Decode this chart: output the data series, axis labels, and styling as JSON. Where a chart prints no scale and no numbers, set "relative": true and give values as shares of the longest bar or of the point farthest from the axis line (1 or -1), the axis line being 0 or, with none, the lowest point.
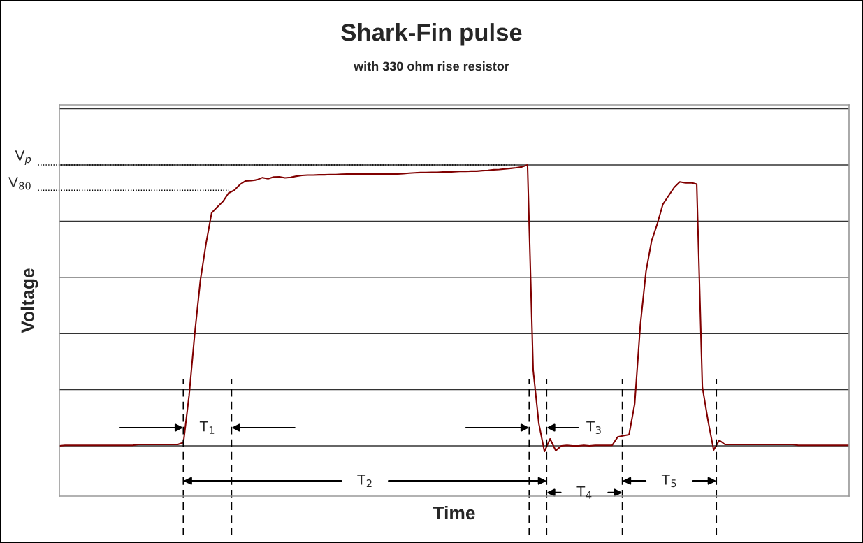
{
  "chart_data": {
    "type": "line",
    "title": "Shark-Fin pulse",
    "subtitle": "with 330 ohm rise resistor",
    "xlabel": "Time",
    "ylabel": "Voltage",
    "relative": true,
    "grid": "y",
    "tick_labels": false,
    "categories": [
      null,
      null,
      null,
      null,
      null,
      null,
      null,
      null,
      null,
      null,
      null,
      null,
      null,
      null,
      null,
      null,
      null,
      null,
      null,
      null,
      null,
      null,
      null,
      null,
      null,
      null,
      null,
      null,
      null,
      null,
      null,
      null,
      null,
      null,
      null,
      null,
      null,
      null,
      null,
      null,
      null,
      null,
      null,
      null,
      null,
      null,
      null,
      null,
      null,
      null,
      null,
      null,
      null,
      null,
      null,
      null,
      null,
      null,
      null,
      null,
      null,
      null,
      null,
      null,
      null,
      null,
      null,
      null,
      null,
      null,
      null,
      null,
      null,
      null,
      null,
      null,
      null,
      null,
      null,
      null,
      null,
      null,
      null,
      null,
      null,
      null,
      null,
      null,
      null,
      null,
      null,
      null,
      null,
      null,
      null,
      null,
      null,
      null,
      null,
      null,
      null,
      null,
      null,
      null,
      null,
      null,
      null,
      null,
      null,
      null,
      null,
      null,
      null,
      null,
      null,
      null,
      null,
      null,
      null,
      null,
      null,
      null,
      null,
      null,
      null,
      null,
      null,
      null,
      null,
      null,
      null,
      null,
      null,
      null,
      null,
      null,
      null,
      null,
      null,
      null,
      null
    ],
    "series": [
      {
        "color": "#800000",
        "values": [
          0.0,
          0.002,
          0.002,
          0.002,
          0.002,
          0.002,
          0.002,
          0.002,
          0.002,
          0.002,
          0.002,
          0.002,
          0.002,
          0.002,
          0.005,
          0.005,
          0.005,
          0.005,
          0.005,
          0.005,
          0.005,
          0.005,
          0.012,
          0.18,
          0.4,
          0.59,
          0.72,
          0.83,
          0.85,
          0.87,
          0.9,
          0.91,
          0.93,
          0.943,
          0.944,
          0.947,
          0.955,
          0.951,
          0.957,
          0.958,
          0.954,
          0.956,
          0.96,
          0.963,
          0.964,
          0.964,
          0.965,
          0.965,
          0.966,
          0.966,
          0.967,
          0.968,
          0.968,
          0.968,
          0.968,
          0.968,
          0.968,
          0.968,
          0.968,
          0.968,
          0.968,
          0.969,
          0.971,
          0.972,
          0.973,
          0.973,
          0.974,
          0.974,
          0.975,
          0.975,
          0.976,
          0.977,
          0.977,
          0.978,
          0.978,
          0.98,
          0.981,
          0.983,
          0.984,
          0.986,
          0.988,
          0.99,
          0.993,
          1.0,
          0.27,
          0.08,
          -0.02,
          0.025,
          -0.017,
          0.0,
          0.002,
          0.0,
          0.0,
          0.002,
          0.0,
          0.002,
          0.002,
          0.002,
          0.002,
          0.032,
          0.036,
          0.04,
          0.15,
          0.43,
          0.62,
          0.73,
          0.79,
          0.86,
          0.89,
          0.92,
          0.94,
          0.936,
          0.937,
          0.932,
          0.21,
          0.09,
          -0.015,
          0.02,
          0.005,
          0.005,
          0.005,
          0.005,
          0.005,
          0.005,
          0.005,
          0.005,
          0.005,
          0.005,
          0.005,
          0.005,
          0.005,
          0.002,
          0.002,
          0.002,
          0.002,
          0.002,
          0.002,
          0.002,
          0.002,
          0.002,
          0.002
        ]
      }
    ],
    "ref_lines": [
      {
        "axis": "y",
        "value": 1.0,
        "label": "V$_{p}$",
        "line_style": "dotted"
      },
      {
        "axis": "y",
        "value": 0.91,
        "label": "V$_{80}$",
        "line_style": "dotted"
      }
    ],
    "legend": false,
    "annotations": [
      "T$_{1}$",
      "T$_{2}$",
      "T$_{3}$",
      "T$_{4}$",
      "T$_{5}$"
    ]
  }
}
